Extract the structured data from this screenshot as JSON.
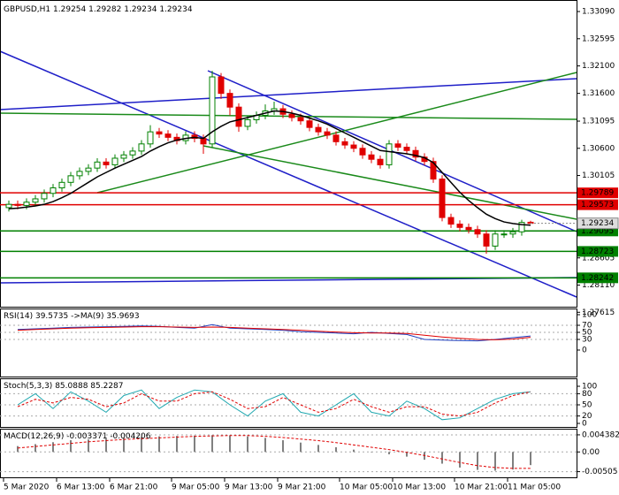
{
  "chart_data": {
    "type": "candlestick",
    "title": "GBPUSD,H1",
    "up_color": "#008000",
    "down_color": "#e00000",
    "ylim": [
      1.277,
      1.333
    ],
    "yticks": [
      {
        "value": 1.3309,
        "label": "1.33090"
      },
      1.32595,
      {
        "value": 1.321,
        "label": "1.32100"
      },
      {
        "value": 1.316,
        "label": "1.31600"
      },
      1.31095,
      {
        "value": 1.306,
        "label": "1.30600"
      },
      1.30105,
      1.28605,
      {
        "value": 1.2811,
        "label": "1.28110"
      },
      1.27615
    ],
    "categories": [
      "5 Mar 2020",
      null,
      null,
      null,
      null,
      null,
      "6 Mar 13:00",
      null,
      null,
      null,
      null,
      null,
      "6 Mar 21:00",
      null,
      null,
      null,
      null,
      null,
      null,
      "9 Mar 05:00",
      null,
      null,
      null,
      null,
      null,
      "9 Mar 13:00",
      null,
      null,
      null,
      null,
      null,
      "9 Mar 21:00",
      null,
      null,
      null,
      null,
      null,
      null,
      "10 Mar 05:00",
      null,
      null,
      null,
      null,
      null,
      "10 Mar 13:00",
      null,
      null,
      null,
      null,
      null,
      null,
      "10 Mar 21:00",
      null,
      null,
      null,
      null,
      null,
      "11 Mar 05:00",
      null,
      null
    ],
    "open": [
      1.2952,
      1.2958,
      1.2956,
      1.2962,
      1.2968,
      1.2978,
      1.2988,
      1.2998,
      1.301,
      1.3018,
      1.3024,
      1.3035,
      1.303,
      1.3042,
      1.3048,
      1.3055,
      1.3068,
      1.309,
      1.3086,
      1.308,
      1.3074,
      1.3084,
      1.3078,
      1.3068,
      1.319,
      1.316,
      1.3135,
      1.31,
      1.3112,
      1.312,
      1.3128,
      1.3132,
      1.3122,
      1.3116,
      1.311,
      1.3098,
      1.309,
      1.3084,
      1.3072,
      1.3066,
      1.306,
      1.3048,
      1.304,
      1.303,
      1.3068,
      1.3062,
      1.3056,
      1.3044,
      1.3036,
      1.3004,
      1.2934,
      1.2922,
      1.2916,
      1.2912,
      1.2904,
      1.2882,
      1.2904,
      1.2904,
      1.2908,
      1.29254
    ],
    "high": [
      1.2965,
      1.2965,
      1.2969,
      1.2975,
      1.2985,
      1.2995,
      1.3005,
      1.3017,
      1.3025,
      1.3031,
      1.3042,
      1.3042,
      1.3049,
      1.3055,
      1.3062,
      1.3075,
      1.3102,
      1.3097,
      1.3093,
      1.3087,
      1.3091,
      1.3091,
      1.3085,
      1.3201,
      1.3197,
      1.3167,
      1.3142,
      1.3119,
      1.3127,
      1.314,
      1.3145,
      1.3139,
      1.3129,
      1.3123,
      1.3117,
      1.3105,
      1.3097,
      1.3091,
      1.3079,
      1.3073,
      1.3067,
      1.3055,
      1.3047,
      1.3075,
      1.3075,
      1.3069,
      1.3063,
      1.3051,
      1.3043,
      1.3011,
      1.2941,
      1.2929,
      1.2923,
      1.2919,
      1.2911,
      1.2911,
      1.2911,
      1.2915,
      1.293,
      1.29282
    ],
    "low": [
      1.2945,
      1.2949,
      1.2949,
      1.2955,
      1.2961,
      1.2971,
      1.2981,
      1.2991,
      1.3003,
      1.3011,
      1.3017,
      1.3023,
      1.3023,
      1.3035,
      1.3041,
      1.3048,
      1.3061,
      1.3079,
      1.3073,
      1.3067,
      1.3067,
      1.3071,
      1.305,
      1.3061,
      1.315,
      1.312,
      1.309,
      1.3093,
      1.3105,
      1.3113,
      1.3121,
      1.3115,
      1.3109,
      1.3103,
      1.3091,
      1.3083,
      1.3077,
      1.3065,
      1.3059,
      1.3053,
      1.3041,
      1.3033,
      1.3023,
      1.3023,
      1.3055,
      1.3049,
      1.3037,
      1.3029,
      1.2997,
      1.2927,
      1.2915,
      1.2909,
      1.2905,
      1.2897,
      1.2868,
      1.2875,
      1.2897,
      1.2897,
      1.2901,
      1.29234
    ],
    "close": [
      1.2958,
      1.2956,
      1.2962,
      1.2968,
      1.2978,
      1.2988,
      1.2998,
      1.301,
      1.3018,
      1.3024,
      1.3035,
      1.303,
      1.3042,
      1.3048,
      1.3055,
      1.3068,
      1.309,
      1.3086,
      1.308,
      1.3074,
      1.3084,
      1.3078,
      1.3068,
      1.319,
      1.316,
      1.3135,
      1.31,
      1.3112,
      1.312,
      1.3128,
      1.3132,
      1.3122,
      1.3116,
      1.311,
      1.3098,
      1.309,
      1.3084,
      1.3072,
      1.3066,
      1.306,
      1.3048,
      1.304,
      1.303,
      1.3068,
      1.3062,
      1.3056,
      1.3044,
      1.3036,
      1.3004,
      1.2934,
      1.2922,
      1.2916,
      1.2912,
      1.2904,
      1.2882,
      1.2904,
      1.2904,
      1.2908,
      1.2925,
      1.29234
    ],
    "ma": {
      "color": "#000000",
      "values": [
        1.295,
        1.2951,
        1.2953,
        1.2955,
        1.2958,
        1.2963,
        1.297,
        1.2978,
        1.2988,
        1.2998,
        1.3008,
        1.3016,
        1.3024,
        1.3031,
        1.3038,
        1.3045,
        1.3055,
        1.3063,
        1.307,
        1.3075,
        1.3078,
        1.308,
        1.3078,
        1.309,
        1.31,
        1.3108,
        1.3112,
        1.3116,
        1.312,
        1.3124,
        1.3128,
        1.3127,
        1.3124,
        1.312,
        1.3115,
        1.311,
        1.3104,
        1.3096,
        1.3088,
        1.308,
        1.3072,
        1.3064,
        1.3056,
        1.3054,
        1.3052,
        1.305,
        1.3047,
        1.3043,
        1.3034,
        1.3016,
        1.2998,
        1.298,
        1.2965,
        1.2952,
        1.294,
        1.2932,
        1.2926,
        1.2923,
        1.2921,
        1.292
      ]
    },
    "levels": [
      {
        "value": 1.29789,
        "color": "#e00000"
      },
      {
        "value": 1.29573,
        "color": "#e00000"
      },
      {
        "value": 1.29095,
        "color": "#008000"
      },
      {
        "value": 1.28723,
        "color": "#008000"
      },
      {
        "value": 1.28242,
        "color": "#008000"
      }
    ],
    "panels": [
      {
        "type": "rsi",
        "title": "RSI(14)",
        "ylim": [
          0,
          100
        ],
        "yticks": [
          100,
          70,
          50,
          30,
          0
        ],
        "series": [
          {
            "color": "#1f3fbf",
            "style": "line",
            "values": [
              58,
              60,
              62,
              64,
              65,
              66,
              67,
              68,
              67,
              64,
              62,
              72,
              62,
              60,
              58,
              56,
              52,
              50,
              48,
              46,
              50,
              47,
              44,
              30,
              28,
              27,
              26,
              30,
              35,
              39.5735
            ]
          },
          {
            "name": "->MA(9)",
            "color": "#e00000",
            "style": "line",
            "values": [
              56,
              58,
              60,
              62,
              63,
              64,
              65,
              66,
              66,
              65,
              64,
              65,
              64,
              62,
              60,
              58,
              56,
              53,
              51,
              49,
              48,
              48,
              47,
              42,
              37,
              33,
              30,
              29,
              31,
              35.9693
            ]
          }
        ]
      },
      {
        "type": "stoch",
        "title": "Stoch(5,3,3)",
        "ylim": [
          0,
          100
        ],
        "yticks": [
          100,
          80,
          50,
          20,
          0
        ],
        "series": [
          {
            "color": "#20a8b0",
            "style": "line",
            "values": [
              50,
              80,
              40,
              85,
              60,
              30,
              75,
              90,
              40,
              70,
              90,
              85,
              50,
              20,
              60,
              80,
              30,
              20,
              50,
              80,
              30,
              20,
              60,
              40,
              10,
              15,
              40,
              65,
              80,
              85.0888
            ]
          },
          {
            "color": "#e00000",
            "style": "dashed",
            "values": [
              45,
              65,
              55,
              70,
              65,
              45,
              55,
              80,
              60,
              60,
              80,
              85,
              65,
              40,
              45,
              70,
              50,
              30,
              40,
              65,
              45,
              30,
              45,
              45,
              25,
              20,
              30,
              55,
              75,
              85.2287
            ]
          }
        ]
      },
      {
        "type": "macd",
        "title": "MACD(12,26,9)",
        "ylim": [
          -0.0065,
          0.0055
        ],
        "yticks": [
          0.004382,
          {
            "value": 0,
            "label": "0.00"
          },
          -0.00505
        ],
        "series": [
          {
            "color": "#808080",
            "style": "bars",
            "values": [
              0.0015,
              0.002,
              0.0025,
              0.003,
              0.0032,
              0.0034,
              0.0036,
              0.0038,
              0.004,
              0.0041,
              0.0042,
              0.0043,
              0.0042,
              0.004,
              0.0036,
              0.003,
              0.0024,
              0.0018,
              0.0012,
              0.0006,
              0,
              -0.0006,
              -0.0012,
              -0.002,
              -0.003,
              -0.004,
              -0.0046,
              -0.0048,
              -0.0045,
              -0.003371
            ]
          },
          {
            "color": "#e00000",
            "style": "dashed",
            "values": [
              0.001,
              0.0014,
              0.0018,
              0.0022,
              0.0026,
              0.0029,
              0.0032,
              0.0034,
              0.0036,
              0.0038,
              0.004,
              0.0041,
              0.0042,
              0.0042,
              0.004,
              0.0037,
              0.0033,
              0.0029,
              0.0024,
              0.0018,
              0.0012,
              0.0006,
              -0.0001,
              -0.0009,
              -0.0018,
              -0.0027,
              -0.0035,
              -0.004,
              -0.0042,
              -0.004206
            ]
          }
        ]
      }
    ]
  }
}
